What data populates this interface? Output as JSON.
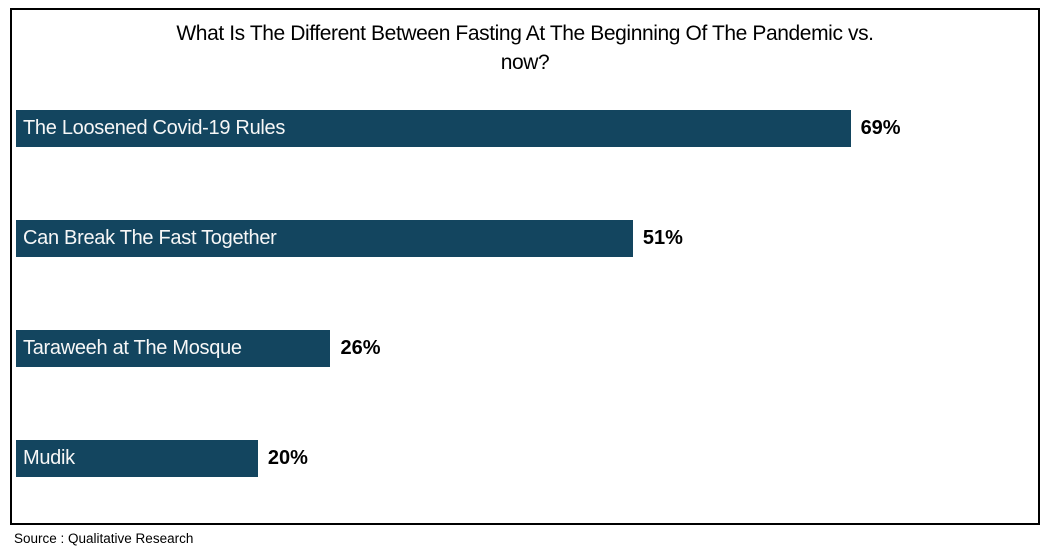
{
  "title": {
    "line1": "What Is The Different Between Fasting At The Beginning Of The Pandemic vs.",
    "line2": "now?"
  },
  "source": "Source : Qualitative Research",
  "colors": {
    "bar_fill": "#13455f",
    "bar_label_text": "#f7f7f7",
    "value_text": "#000000",
    "frame_border": "#000000",
    "background": "#ffffff"
  },
  "chart_data": {
    "type": "bar",
    "orientation": "horizontal",
    "title": "What Is The Different Between Fasting At The Beginning Of The Pandemic vs. now?",
    "categories": [
      "The Loosened Covid-19 Rules",
      "Can Break The Fast Together",
      "Taraweeh at The Mosque",
      "Mudik"
    ],
    "values": [
      69,
      51,
      26,
      20
    ],
    "value_labels": [
      "69%",
      "51%",
      "26%",
      "20%"
    ],
    "xlabel": "",
    "ylabel": "",
    "xlim": [
      0,
      84
    ],
    "grid": false,
    "legend": false,
    "bar_color": "#13455f",
    "value_label_position": "outside-end",
    "category_label_position": "inside-start",
    "source": "Source : Qualitative Research"
  }
}
